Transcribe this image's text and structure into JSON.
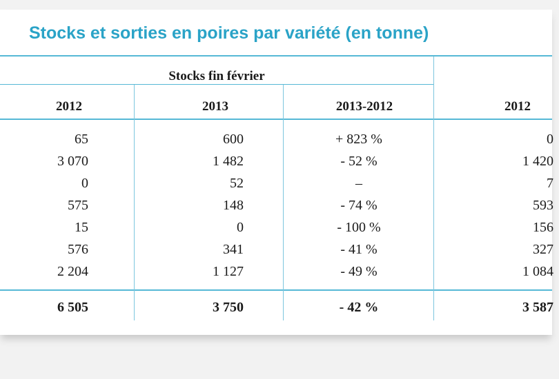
{
  "title": "Stocks et sorties en poires par variété (en tonne)",
  "group_header": "Stocks fin février",
  "columns": [
    "2012",
    "2013",
    "2013-2012",
    "2012"
  ],
  "rows": [
    [
      "65",
      "600",
      "+ 823 %",
      "0"
    ],
    [
      "3 070",
      "1 482",
      "- 52 %",
      "1 420"
    ],
    [
      "0",
      "52",
      "–",
      "7"
    ],
    [
      "575",
      "148",
      "- 74 %",
      "593"
    ],
    [
      "15",
      "0",
      "- 100 %",
      "156"
    ],
    [
      "576",
      "341",
      "- 41 %",
      "327"
    ],
    [
      "2 204",
      "1 127",
      "- 49 %",
      "1 084"
    ]
  ],
  "total": [
    "6 505",
    "3 750",
    "- 42 %",
    "3 587"
  ],
  "colors": {
    "title": "#2aa3c7",
    "rule": "#55b8d6"
  }
}
